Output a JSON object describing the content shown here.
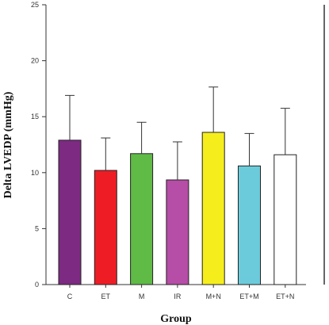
{
  "chart_data": {
    "type": "bar",
    "xlabel": "Group",
    "ylabel": "Delta LVEDP (mmHg)",
    "ylim": [
      0,
      25
    ],
    "yticks": [
      0,
      5,
      10,
      15,
      20,
      25
    ],
    "grid": false,
    "categories": [
      "C",
      "ET",
      "M",
      "IR",
      "M+N",
      "ET+M",
      "ET+N"
    ],
    "values": [
      12.9,
      10.2,
      11.7,
      9.35,
      13.6,
      10.6,
      11.6
    ],
    "error_upper": [
      4.0,
      2.9,
      2.8,
      3.4,
      4.05,
      2.9,
      4.15
    ],
    "colors": [
      "#7d2a82",
      "#ee1d25",
      "#5fba46",
      "#b64da6",
      "#f6ee1c",
      "#6ccbdb",
      "#ffffff"
    ]
  }
}
